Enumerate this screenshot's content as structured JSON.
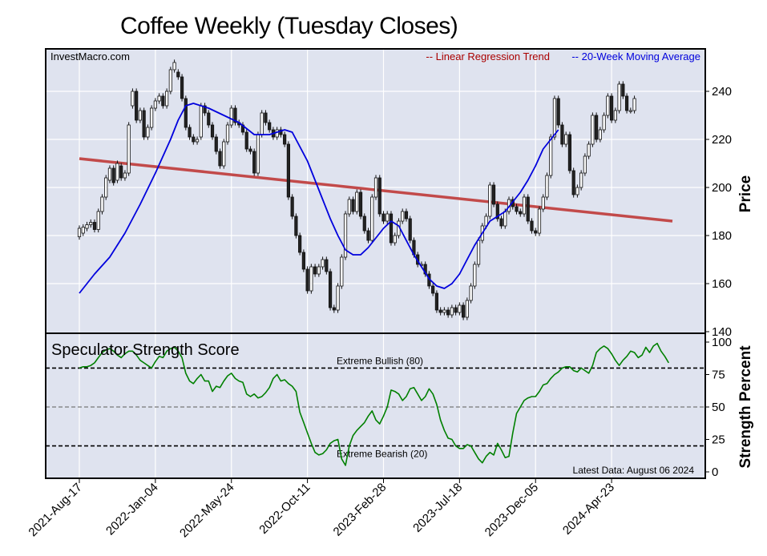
{
  "title": "Coffee Weekly (Tuesday Closes)",
  "source": "InvestMacro.com",
  "latest_data": "Latest Data: August 06 2024",
  "colors": {
    "background": "#ffffff",
    "plot_bg": "#dfe3ef",
    "grid": "#ffffff",
    "regression": "#c24a4a",
    "moving_average": "#0000dd",
    "score": "#008000",
    "candle_up": "#ffffff",
    "candle_down": "#222222",
    "legend_regression": "#aa0000",
    "legend_ma": "#0000dd"
  },
  "chart_data": [
    {
      "type": "candlestick",
      "title": "Coffee Weekly (Tuesday Closes)",
      "ylabel": "Price",
      "ylim": [
        140,
        255
      ],
      "yticks": [
        140,
        160,
        180,
        200,
        220,
        240
      ],
      "legend": [
        {
          "label": "-- Linear Regression Trend",
          "color": "#aa0000"
        },
        {
          "label": "-- 20-Week Moving Average",
          "color": "#0000dd"
        }
      ],
      "x_tick_labels": [
        "2021-Aug-17",
        "2022-Jan-04",
        "2022-May-24",
        "2022-Oct-11",
        "2023-Feb-28",
        "2023-Jul-18",
        "2023-Dec-05",
        "2024-Apr-23"
      ],
      "x_tick_index": [
        0,
        20,
        40,
        60,
        80,
        100,
        120,
        140
      ],
      "x_end_index": 156,
      "regression": {
        "start": [
          0,
          212
        ],
        "end": [
          156,
          186
        ]
      },
      "moving_average": [
        [
          0,
          156
        ],
        [
          4,
          164
        ],
        [
          8,
          171
        ],
        [
          12,
          181
        ],
        [
          16,
          193
        ],
        [
          20,
          206
        ],
        [
          24,
          220
        ],
        [
          26,
          228
        ],
        [
          28,
          234
        ],
        [
          30,
          235
        ],
        [
          34,
          233
        ],
        [
          38,
          230
        ],
        [
          42,
          227
        ],
        [
          46,
          222
        ],
        [
          50,
          222
        ],
        [
          54,
          224
        ],
        [
          56,
          223
        ],
        [
          60,
          211
        ],
        [
          64,
          195
        ],
        [
          66,
          187
        ],
        [
          68,
          180
        ],
        [
          70,
          174
        ],
        [
          72,
          172
        ],
        [
          74,
          172
        ],
        [
          76,
          175
        ],
        [
          78,
          179
        ],
        [
          80,
          183
        ],
        [
          82,
          186
        ],
        [
          84,
          184
        ],
        [
          86,
          178
        ],
        [
          88,
          172
        ],
        [
          90,
          167
        ],
        [
          92,
          162
        ],
        [
          94,
          159
        ],
        [
          96,
          158
        ],
        [
          98,
          160
        ],
        [
          100,
          164
        ],
        [
          102,
          170
        ],
        [
          104,
          176
        ],
        [
          106,
          181
        ],
        [
          108,
          186
        ],
        [
          110,
          188
        ],
        [
          112,
          190
        ],
        [
          114,
          194
        ],
        [
          116,
          198
        ],
        [
          118,
          203
        ],
        [
          120,
          209
        ],
        [
          122,
          216
        ],
        [
          124,
          220
        ],
        [
          126,
          224
        ]
      ],
      "candles": [
        [
          179.5,
          183.0
        ],
        [
          181.0,
          183.5
        ],
        [
          183.0,
          184.5
        ],
        [
          184.5,
          185.5
        ],
        [
          185.5,
          182.5
        ],
        [
          182.5,
          190.0
        ],
        [
          190.0,
          196.0
        ],
        [
          196.0,
          204.0
        ],
        [
          203.0,
          208.0
        ],
        [
          208.0,
          202.0
        ],
        [
          203.0,
          210.0
        ],
        [
          209.0,
          204.0
        ],
        [
          204.0,
          206.0
        ],
        [
          206.0,
          226.0
        ],
        [
          234.0,
          240.0
        ],
        [
          240.0,
          228.0
        ],
        [
          228.0,
          232.0
        ],
        [
          232.0,
          221.0
        ],
        [
          221.0,
          225.0
        ],
        [
          225.0,
          233.0
        ],
        [
          233.0,
          236.0
        ],
        [
          236.0,
          238.0
        ],
        [
          238.0,
          234.0
        ],
        [
          234.0,
          240.0
        ],
        [
          240.0,
          249.0
        ],
        [
          249.0,
          252.0
        ],
        [
          248.0,
          246.0
        ],
        [
          246.0,
          237.0
        ],
        [
          237.0,
          225.0
        ],
        [
          225.0,
          221.0
        ],
        [
          221.0,
          219.0
        ],
        [
          219.0,
          220.0
        ],
        [
          221.0,
          234.0
        ],
        [
          234.0,
          231.0
        ],
        [
          231.0,
          226.0
        ],
        [
          226.0,
          221.0
        ],
        [
          221.0,
          215.0
        ],
        [
          215.0,
          209.0
        ],
        [
          209.0,
          219.0
        ],
        [
          219.0,
          226.0
        ],
        [
          226.0,
          233.0
        ],
        [
          233.0,
          227.0
        ],
        [
          227.0,
          226.0
        ],
        [
          226.0,
          223.0
        ],
        [
          223.0,
          216.0
        ],
        [
          216.0,
          215.0
        ],
        [
          215.0,
          206.0
        ],
        [
          206.0,
          222.0
        ],
        [
          222.0,
          231.0
        ],
        [
          231.0,
          227.0
        ],
        [
          227.0,
          224.0
        ],
        [
          224.0,
          221.0
        ],
        [
          221.0,
          224.0
        ],
        [
          224.0,
          222.0
        ],
        [
          222.0,
          218.0
        ],
        [
          218.0,
          196.0
        ],
        [
          196.0,
          188.0
        ],
        [
          188.0,
          180.0
        ],
        [
          180.0,
          173.0
        ],
        [
          173.0,
          166.0
        ],
        [
          166.0,
          157.0
        ],
        [
          157.0,
          167.0
        ],
        [
          167.0,
          164.0
        ],
        [
          164.0,
          167.0
        ],
        [
          167.0,
          170.0
        ],
        [
          170.0,
          165.0
        ],
        [
          165.0,
          150.0
        ],
        [
          150.0,
          149.0
        ],
        [
          149.0,
          159.0
        ],
        [
          159.0,
          171.0
        ],
        [
          171.0,
          189.0
        ],
        [
          189.0,
          195.0
        ],
        [
          195.0,
          190.0
        ],
        [
          190.0,
          198.0
        ],
        [
          198.0,
          188.0
        ],
        [
          188.0,
          182.0
        ],
        [
          182.0,
          178.0
        ],
        [
          178.0,
          196.0
        ],
        [
          196.0,
          204.0
        ],
        [
          204.0,
          189.0
        ],
        [
          189.0,
          186.0
        ],
        [
          186.0,
          189.0
        ],
        [
          189.0,
          177.0
        ],
        [
          177.0,
          180.0
        ],
        [
          180.0,
          186.0
        ],
        [
          186.0,
          190.0
        ],
        [
          190.0,
          187.0
        ],
        [
          187.0,
          178.0
        ],
        [
          178.0,
          172.0
        ],
        [
          172.0,
          168.0
        ],
        [
          168.0,
          168.0
        ],
        [
          168.0,
          164.0
        ],
        [
          164.0,
          159.0
        ],
        [
          159.0,
          156.0
        ],
        [
          156.0,
          149.0
        ],
        [
          149.0,
          148.0
        ],
        [
          148.0,
          149.0
        ],
        [
          149.0,
          147.0
        ],
        [
          147.0,
          150.0
        ],
        [
          150.0,
          148.0
        ],
        [
          148.0,
          151.0
        ],
        [
          151.0,
          146.0
        ],
        [
          146.0,
          153.0
        ],
        [
          153.0,
          159.0
        ],
        [
          159.0,
          168.0
        ],
        [
          168.0,
          178.0
        ],
        [
          178.0,
          184.0
        ],
        [
          184.0,
          188.0
        ],
        [
          188.0,
          201.0
        ],
        [
          201.0,
          193.0
        ],
        [
          193.0,
          187.0
        ],
        [
          187.0,
          184.0
        ],
        [
          184.0,
          190.0
        ],
        [
          190.0,
          195.0
        ],
        [
          195.0,
          192.0
        ],
        [
          192.0,
          190.0
        ],
        [
          190.0,
          189.0
        ],
        [
          189.0,
          196.0
        ],
        [
          196.0,
          186.0
        ],
        [
          186.0,
          182.0
        ],
        [
          182.0,
          181.0
        ],
        [
          181.0,
          191.0
        ],
        [
          191.0,
          196.0
        ],
        [
          196.0,
          205.0
        ],
        [
          205.0,
          221.0
        ],
        [
          221.0,
          237.0
        ],
        [
          237.0,
          226.0
        ],
        [
          226.0,
          218.0
        ],
        [
          218.0,
          222.0
        ],
        [
          222.0,
          207.0
        ],
        [
          207.0,
          197.0
        ],
        [
          197.0,
          200.0
        ],
        [
          200.0,
          206.0
        ],
        [
          206.0,
          213.0
        ],
        [
          213.0,
          218.0
        ],
        [
          218.0,
          230.0
        ],
        [
          230.0,
          220.0
        ],
        [
          220.0,
          224.0
        ],
        [
          224.0,
          230.0
        ],
        [
          230.0,
          238.0
        ],
        [
          238.0,
          228.0
        ],
        [
          228.0,
          232.0
        ],
        [
          232.0,
          243.0
        ],
        [
          243.0,
          238.0
        ],
        [
          238.0,
          232.0
        ],
        [
          232.0,
          232.0
        ],
        [
          232.0,
          237.0
        ]
      ]
    },
    {
      "type": "line",
      "title": "Speculator Strength Score",
      "ylabel": "Strength Percent",
      "ylim": [
        0,
        100
      ],
      "yticks": [
        0,
        25,
        50,
        75,
        100
      ],
      "reference_lines": [
        {
          "y": 80,
          "label": "Extreme Bullish (80)"
        },
        {
          "y": 50,
          "label": ""
        },
        {
          "y": 20,
          "label": "Extreme Bearish (20)"
        }
      ],
      "series": [
        {
          "values": [
            80,
            81,
            81,
            82,
            84,
            88,
            92,
            94,
            95,
            93,
            90,
            88,
            91,
            93,
            93,
            90,
            86,
            84,
            82,
            80,
            85,
            89,
            88,
            93,
            95,
            96,
            93,
            88,
            76,
            70,
            68,
            72,
            75,
            70,
            70,
            62,
            66,
            65,
            70,
            74,
            76,
            72,
            70,
            69,
            60,
            58,
            60,
            57,
            58,
            61,
            65,
            72,
            75,
            70,
            71,
            68,
            66,
            62,
            46,
            38,
            30,
            22,
            15,
            13,
            14,
            17,
            22,
            24,
            25,
            10,
            5,
            20,
            28,
            32,
            35,
            38,
            43,
            47,
            40,
            37,
            43,
            50,
            63,
            62,
            60,
            55,
            58,
            64,
            65,
            60,
            55,
            58,
            64,
            60,
            52,
            40,
            32,
            26,
            25,
            20,
            18,
            18,
            21,
            20,
            15,
            10,
            7,
            12,
            15,
            13,
            22,
            17,
            11,
            12,
            30,
            45,
            50,
            55,
            57,
            58,
            58,
            62,
            67,
            68,
            72,
            75,
            77,
            80,
            81,
            81,
            78,
            77,
            80,
            78,
            76,
            82,
            92,
            95,
            97,
            95,
            91,
            86,
            82,
            86,
            89,
            93,
            92,
            88,
            90,
            96,
            92,
            97,
            99,
            93,
            89,
            84
          ]
        }
      ]
    }
  ]
}
